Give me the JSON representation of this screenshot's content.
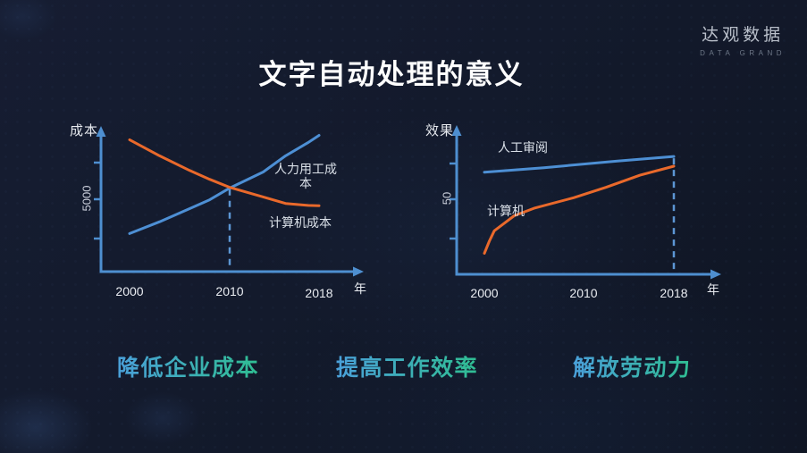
{
  "title": "文字自动处理的意义",
  "logo": {
    "name": "达观数据",
    "subtitle": "DATA GRAND"
  },
  "benefits": [
    "降低企业成本",
    "提高工作效率",
    "解放劳动力"
  ],
  "colors": {
    "background": "#131a2c",
    "axis_blue": "#4e8fd0",
    "dashed_blue": "#5c96d4",
    "line_blue": "#4d8fd4",
    "line_orange": "#e9692b",
    "benefit_gradient_start": "#4aa0da",
    "benefit_gradient_end": "#2fbe92"
  },
  "chart_data": [
    {
      "type": "line",
      "title": "",
      "ylabel": "成本",
      "xlabel": "年",
      "x_ticks": [
        "2000",
        "2010",
        "2018"
      ],
      "y_tick_label": "5000",
      "ylim": [
        0,
        10000
      ],
      "xlim": [
        2000,
        2018
      ],
      "grid": false,
      "legend_position": "inline-annotations",
      "marker_x": 2010,
      "marker_meaning": "dashed vertical line at crossover year 2010",
      "series": [
        {
          "name": "人力用工成本",
          "color": "#4d8fd4",
          "x": [
            2000,
            2003,
            2006,
            2008,
            2010,
            2013,
            2015,
            2017,
            2018
          ],
          "y": [
            2600,
            3400,
            4300,
            4900,
            5700,
            6800,
            7900,
            8800,
            9300
          ]
        },
        {
          "name": "计算机成本",
          "color": "#e9692b",
          "x": [
            2000,
            2003,
            2006,
            2008,
            2010,
            2013,
            2015,
            2017,
            2018
          ],
          "y": [
            9000,
            7900,
            6900,
            6300,
            5750,
            5100,
            4650,
            4520,
            4500
          ]
        }
      ]
    },
    {
      "type": "line",
      "title": "",
      "ylabel": "效果",
      "xlabel": "年",
      "x_ticks": [
        "2000",
        "2010",
        "2018"
      ],
      "y_tick_label": "50",
      "ylim": [
        0,
        100
      ],
      "xlim": [
        2000,
        2018
      ],
      "grid": false,
      "legend_position": "inline-annotations",
      "marker_x": 2018,
      "marker_meaning": "dashed vertical line at year 2018",
      "series": [
        {
          "name": "人工审阅",
          "color": "#4d8fd4",
          "x": [
            2000,
            2006,
            2013,
            2018
          ],
          "y": [
            68,
            71,
            75.5,
            78.5
          ]
        },
        {
          "name": "计算机",
          "color": "#e9692b",
          "x": [
            2000,
            2000.5,
            2001,
            2002,
            2003,
            2005,
            2009,
            2012,
            2015,
            2018
          ],
          "y": [
            14,
            22,
            29,
            34,
            39,
            44,
            51,
            58,
            66,
            72
          ]
        }
      ]
    }
  ]
}
